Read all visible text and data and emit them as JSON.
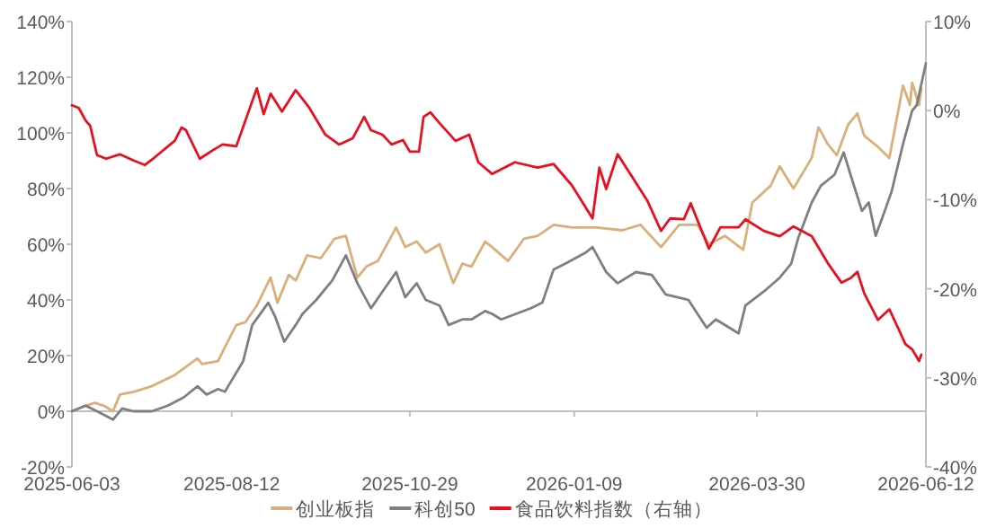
{
  "chart_data": {
    "type": "line",
    "legend": "bottom",
    "xlim": [
      "2025-06-03",
      "2026-06-12"
    ],
    "xticks": [
      "2025-06-03",
      "2025-08-12",
      "2025-10-29",
      "2026-01-09",
      "2026-03-30",
      "2026-06-12"
    ],
    "ylim": [
      -20,
      140
    ],
    "yticks": [
      {
        "value": -20,
        "label": "-20%"
      },
      {
        "value": 0,
        "label": "0%"
      },
      {
        "value": 20,
        "label": "20%"
      },
      {
        "value": 40,
        "label": "40%"
      },
      {
        "value": 60,
        "label": "60%"
      },
      {
        "value": 80,
        "label": "80%"
      },
      {
        "value": 100,
        "label": "100%"
      },
      {
        "value": 120,
        "label": "120%"
      },
      {
        "value": 140,
        "label": "140%"
      }
    ],
    "y2lim": [
      -40,
      10
    ],
    "y2ticks": [
      {
        "value": -40,
        "label": "-40%"
      },
      {
        "value": -30,
        "label": "-30%"
      },
      {
        "value": -20,
        "label": "-20%"
      },
      {
        "value": -10,
        "label": "-10%"
      },
      {
        "value": 0,
        "label": "0%"
      },
      {
        "value": 10,
        "label": "10%"
      }
    ],
    "series": [
      {
        "name": "创业板指",
        "color": "#d9b07a",
        "x": [
          "2025-06-03",
          "2025-06-09",
          "2025-06-13",
          "2025-06-17",
          "2025-06-21",
          "2025-06-24",
          "2025-06-30",
          "2025-07-08",
          "2025-07-18",
          "2025-07-28",
          "2025-07-30",
          "2025-08-06",
          "2025-08-09",
          "2025-08-14",
          "2025-08-18",
          "2025-08-23",
          "2025-08-29",
          "2025-09-01",
          "2025-09-06",
          "2025-09-09",
          "2025-09-14",
          "2025-09-20",
          "2025-09-26",
          "2025-10-01",
          "2025-10-06",
          "2025-10-10",
          "2025-10-15",
          "2025-10-23",
          "2025-10-27",
          "2025-11-01",
          "2025-11-05",
          "2025-11-11",
          "2025-11-17",
          "2025-11-21",
          "2025-11-25",
          "2025-12-01",
          "2025-12-04",
          "2025-12-11",
          "2025-12-18",
          "2025-12-24",
          "2025-12-31",
          "2026-01-08",
          "2026-01-19",
          "2026-01-30",
          "2026-02-07",
          "2026-02-16",
          "2026-02-24",
          "2026-03-04",
          "2026-03-09",
          "2026-03-16",
          "2026-03-24",
          "2026-03-28",
          "2026-04-05",
          "2026-04-09",
          "2026-04-15",
          "2026-04-23",
          "2026-04-26",
          "2026-04-30",
          "2026-05-04",
          "2026-05-09",
          "2026-05-13",
          "2026-05-16",
          "2026-05-22",
          "2026-05-27",
          "2026-05-30",
          "2026-06-02",
          "2026-06-05",
          "2026-06-06",
          "2026-06-09",
          "2026-06-10"
        ],
        "values": [
          0,
          2,
          3,
          2,
          0,
          6,
          7,
          9,
          13,
          19,
          17,
          18,
          23,
          31,
          32,
          38,
          48,
          39,
          49,
          47,
          56,
          55,
          62,
          63,
          48,
          52,
          54,
          66,
          59,
          61,
          57,
          60,
          46,
          53,
          52,
          61,
          59,
          54,
          62,
          63,
          67,
          66,
          66,
          65,
          67,
          59,
          67,
          67,
          60,
          63,
          58,
          75,
          81,
          88,
          80,
          91,
          102,
          96,
          92,
          103,
          107,
          99,
          95,
          91,
          104,
          117,
          110,
          118,
          110,
          116
        ]
      },
      {
        "name": "科创50",
        "color": "#7f7f7f",
        "x": [
          "2025-06-03",
          "2025-06-09",
          "2025-06-14",
          "2025-06-21",
          "2025-06-25",
          "2025-06-30",
          "2025-07-08",
          "2025-07-15",
          "2025-07-22",
          "2025-07-28",
          "2025-08-01",
          "2025-08-06",
          "2025-08-09",
          "2025-08-17",
          "2025-08-21",
          "2025-08-28",
          "2025-08-31",
          "2025-09-04",
          "2025-09-09",
          "2025-09-12",
          "2025-09-18",
          "2025-09-25",
          "2025-10-01",
          "2025-10-06",
          "2025-10-12",
          "2025-10-17",
          "2025-10-23",
          "2025-10-27",
          "2025-11-01",
          "2025-11-05",
          "2025-11-11",
          "2025-11-15",
          "2025-11-21",
          "2025-11-25",
          "2025-12-01",
          "2025-12-04",
          "2025-12-08",
          "2025-12-21",
          "2025-12-26",
          "2025-12-31",
          "2026-01-05",
          "2026-01-14",
          "2026-01-17",
          "2026-01-23",
          "2026-01-28",
          "2026-02-05",
          "2026-02-12",
          "2026-02-18",
          "2026-02-28",
          "2026-03-08",
          "2026-03-12",
          "2026-03-22",
          "2026-03-25",
          "2026-04-02",
          "2026-04-09",
          "2026-04-14",
          "2026-04-17",
          "2026-04-23",
          "2026-04-27",
          "2026-05-03",
          "2026-05-07",
          "2026-05-10",
          "2026-05-15",
          "2026-05-18",
          "2026-05-21",
          "2026-05-25",
          "2026-05-28",
          "2026-06-02",
          "2026-06-06",
          "2026-06-08",
          "2026-06-12"
        ],
        "values": [
          0,
          2,
          0,
          -3,
          1,
          0,
          0,
          2,
          5,
          9,
          6,
          8,
          7,
          18,
          31,
          39,
          34,
          25,
          31,
          35,
          40,
          47,
          56,
          46,
          37,
          43,
          50,
          41,
          46,
          40,
          38,
          31,
          33,
          33,
          36,
          35,
          33,
          37,
          39,
          51,
          53,
          57,
          59,
          50,
          46,
          50,
          49,
          42,
          40,
          30,
          33,
          28,
          38,
          43,
          48,
          53,
          62,
          75,
          81,
          85,
          93,
          85,
          72,
          75,
          63,
          72,
          79,
          96,
          108,
          110,
          125
        ]
      },
      {
        "name": "食品饮料指数（右轴）",
        "color": "#e8101e",
        "axis": "y2",
        "x": [
          "2025-06-03",
          "2025-06-06",
          "2025-06-09",
          "2025-06-11",
          "2025-06-14",
          "2025-06-18",
          "2025-06-24",
          "2025-06-30",
          "2025-07-05",
          "2025-07-09",
          "2025-07-18",
          "2025-07-21",
          "2025-07-23",
          "2025-07-29",
          "2025-08-04",
          "2025-08-08",
          "2025-08-14",
          "2025-08-18",
          "2025-08-23",
          "2025-08-26",
          "2025-08-29",
          "2025-09-03",
          "2025-09-09",
          "2025-09-15",
          "2025-09-22",
          "2025-09-28",
          "2025-10-04",
          "2025-10-09",
          "2025-10-12",
          "2025-10-17",
          "2025-10-21",
          "2025-10-26",
          "2025-10-29",
          "2025-11-02",
          "2025-11-04",
          "2025-11-07",
          "2025-11-11",
          "2025-11-18",
          "2025-11-24",
          "2025-11-28",
          "2025-12-04",
          "2025-12-14",
          "2025-12-24",
          "2025-12-31",
          "2026-01-08",
          "2026-01-17",
          "2026-01-20",
          "2026-01-23",
          "2026-01-28",
          "2026-02-05",
          "2026-02-10",
          "2026-02-16",
          "2026-02-20",
          "2026-02-26",
          "2026-03-01",
          "2026-03-09",
          "2026-03-14",
          "2026-03-22",
          "2026-03-25",
          "2026-04-02",
          "2026-04-09",
          "2026-04-15",
          "2026-04-23",
          "2026-04-30",
          "2026-05-06",
          "2026-05-10",
          "2026-05-13",
          "2026-05-16",
          "2026-05-22",
          "2026-05-27",
          "2026-05-31",
          "2026-06-03",
          "2026-06-06",
          "2026-06-09",
          "2026-06-10"
        ],
        "values": [
          0.6,
          0.3,
          -1.1,
          -1.7,
          -5.0,
          -5.4,
          -4.9,
          -5.6,
          -6.1,
          -5.3,
          -3.4,
          -1.9,
          -2.2,
          -5.4,
          -4.4,
          -3.8,
          -4.0,
          -1.1,
          2.5,
          -0.4,
          1.9,
          -0.1,
          2.3,
          0.3,
          -2.7,
          -3.8,
          -3.1,
          -0.7,
          -2.2,
          -2.7,
          -3.8,
          -3.3,
          -4.6,
          -4.6,
          -0.7,
          -0.2,
          -1.4,
          -3.4,
          -2.7,
          -5.8,
          -7.1,
          -5.8,
          -6.4,
          -6.0,
          -8.4,
          -12.1,
          -6.4,
          -8.8,
          -4.9,
          -8.1,
          -10.1,
          -13.5,
          -12.1,
          -12.2,
          -10.4,
          -15.5,
          -13.1,
          -13.1,
          -12.2,
          -13.5,
          -14.1,
          -13.0,
          -14.1,
          -17.1,
          -19.3,
          -18.8,
          -18.1,
          -20.5,
          -23.5,
          -22.3,
          -24.5,
          -26.2,
          -26.8,
          -28.1,
          -27.4
        ]
      }
    ]
  }
}
